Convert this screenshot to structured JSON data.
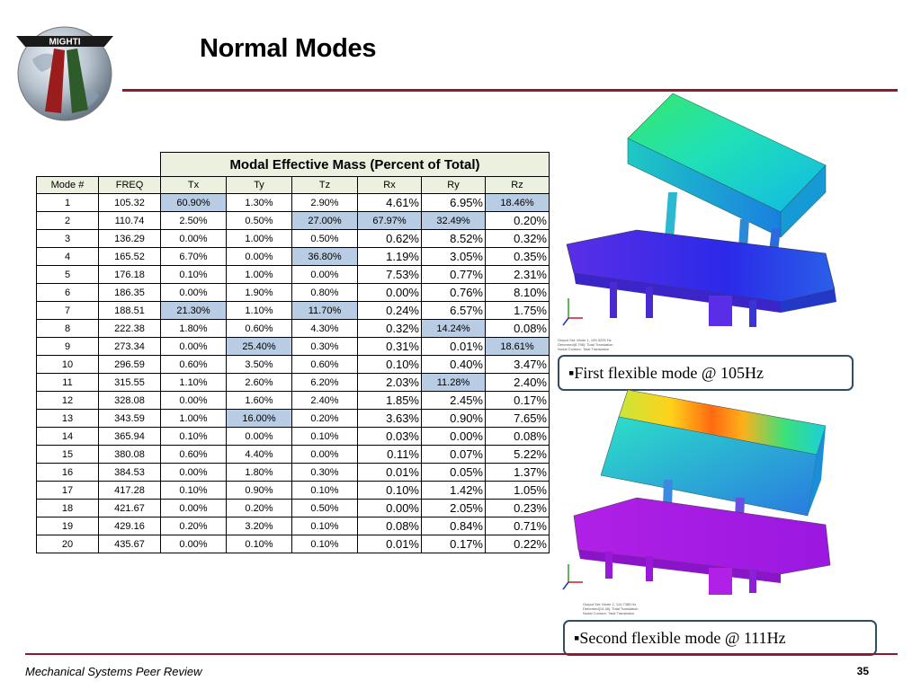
{
  "logo": {
    "text": "MIGHTI"
  },
  "title": "Normal Modes",
  "table": {
    "group_header": "Modal Effective Mass (Percent of Total)",
    "columns": [
      "Mode #",
      "FREQ",
      "Tx",
      "Ty",
      "Tz",
      "Rx",
      "Ry",
      "Rz"
    ],
    "rows": [
      [
        "1",
        "105.32",
        "60.90%",
        "1.30%",
        "2.90%",
        "4.61%",
        "6.95%",
        "18.46%"
      ],
      [
        "2",
        "110.74",
        "2.50%",
        "0.50%",
        "27.00%",
        "67.97%",
        "32.49%",
        "0.20%"
      ],
      [
        "3",
        "136.29",
        "0.00%",
        "1.00%",
        "0.50%",
        "0.62%",
        "8.52%",
        "0.32%"
      ],
      [
        "4",
        "165.52",
        "6.70%",
        "0.00%",
        "36.80%",
        "1.19%",
        "3.05%",
        "0.35%"
      ],
      [
        "5",
        "176.18",
        "0.10%",
        "1.00%",
        "0.00%",
        "7.53%",
        "0.77%",
        "2.31%"
      ],
      [
        "6",
        "186.35",
        "0.00%",
        "1.90%",
        "0.80%",
        "0.00%",
        "0.76%",
        "8.10%"
      ],
      [
        "7",
        "188.51",
        "21.30%",
        "1.10%",
        "11.70%",
        "0.24%",
        "6.57%",
        "1.75%"
      ],
      [
        "8",
        "222.38",
        "1.80%",
        "0.60%",
        "4.30%",
        "0.32%",
        "14.24%",
        "0.08%"
      ],
      [
        "9",
        "273.34",
        "0.00%",
        "25.40%",
        "0.30%",
        "0.31%",
        "0.01%",
        "18.61%"
      ],
      [
        "10",
        "296.59",
        "0.60%",
        "3.50%",
        "0.60%",
        "0.10%",
        "0.40%",
        "3.47%"
      ],
      [
        "11",
        "315.55",
        "1.10%",
        "2.60%",
        "6.20%",
        "2.03%",
        "11.28%",
        "2.40%"
      ],
      [
        "12",
        "328.08",
        "0.00%",
        "1.60%",
        "2.40%",
        "1.85%",
        "2.45%",
        "0.17%"
      ],
      [
        "13",
        "343.59",
        "1.00%",
        "16.00%",
        "0.20%",
        "3.63%",
        "0.90%",
        "7.65%"
      ],
      [
        "14",
        "365.94",
        "0.10%",
        "0.00%",
        "0.10%",
        "0.03%",
        "0.00%",
        "0.08%"
      ],
      [
        "15",
        "380.08",
        "0.60%",
        "4.40%",
        "0.00%",
        "0.11%",
        "0.07%",
        "5.22%"
      ],
      [
        "16",
        "384.53",
        "0.00%",
        "1.80%",
        "0.30%",
        "0.01%",
        "0.05%",
        "1.37%"
      ],
      [
        "17",
        "417.28",
        "0.10%",
        "0.90%",
        "0.10%",
        "0.10%",
        "1.42%",
        "1.05%"
      ],
      [
        "18",
        "421.67",
        "0.00%",
        "0.20%",
        "0.50%",
        "0.00%",
        "2.05%",
        "0.23%"
      ],
      [
        "19",
        "429.16",
        "0.20%",
        "3.20%",
        "0.10%",
        "0.08%",
        "0.84%",
        "0.71%"
      ],
      [
        "20",
        "435.67",
        "0.00%",
        "0.10%",
        "0.10%",
        "0.01%",
        "0.17%",
        "0.22%"
      ]
    ],
    "highlighted": [
      [
        0,
        2
      ],
      [
        0,
        7
      ],
      [
        1,
        4
      ],
      [
        1,
        5
      ],
      [
        1,
        6
      ],
      [
        3,
        4
      ],
      [
        6,
        2
      ],
      [
        6,
        4
      ],
      [
        7,
        6
      ],
      [
        8,
        3
      ],
      [
        8,
        7
      ],
      [
        10,
        6
      ],
      [
        12,
        3
      ]
    ],
    "small_rotational": [
      [
        0,
        7
      ],
      [
        1,
        5
      ],
      [
        1,
        6
      ],
      [
        7,
        6
      ],
      [
        8,
        7
      ],
      [
        10,
        6
      ]
    ]
  },
  "captions": {
    "mode1": "First flexible mode @ 105Hz",
    "mode2": "Second flexible mode @ 111Hz"
  },
  "footer": {
    "text": "Mechanical Systems Peer Review",
    "page": "35"
  },
  "colors": {
    "accent": "#8b1a2b",
    "header_fill": "#ebf1de",
    "highlight": "#b8cce4",
    "caption_border": "#2e4d66"
  }
}
